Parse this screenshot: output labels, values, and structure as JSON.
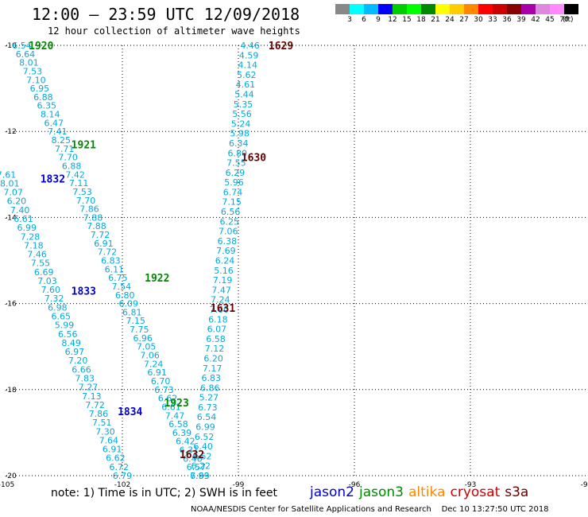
{
  "title": "12:00 – 23:59 UTC 12/09/2018",
  "subtitle": "12 hour collection of altimeter wave heights",
  "note": "note: 1) Time is in UTC; 2) SWH is in feet",
  "credit": "NOAA/NESDIS Center for Satellite Applications and Research    Dec 10 13:27:50 UTC 2018",
  "colors": {
    "jason2": "#0000cc",
    "jason3": "#008800",
    "altika": "#ff8800",
    "cryosat": "#cc0000",
    "s3a": "#660000",
    "value": "#00aadd"
  },
  "satellites": [
    {
      "name": "jason2",
      "color": "#0000cc"
    },
    {
      "name": "jason3",
      "color": "#008800"
    },
    {
      "name": "altika",
      "color": "#ff8800"
    },
    {
      "name": "cryosat",
      "color": "#cc0000"
    },
    {
      "name": "s3a",
      "color": "#660000"
    }
  ],
  "colorbar": {
    "colors": [
      "#888888",
      "#00ffff",
      "#00bbff",
      "#0000ff",
      "#00cc00",
      "#00ff00",
      "#008800",
      "#ffff00",
      "#ffcc00",
      "#ff8800",
      "#ff0000",
      "#cc0000",
      "#880000",
      "#aa00aa",
      "#dd88dd",
      "#ff88ff",
      "#000000"
    ],
    "labels": [
      "3",
      "6",
      "9",
      "12",
      "15",
      "18",
      "21",
      "24",
      "27",
      "30",
      "33",
      "36",
      "39",
      "42",
      "45",
      "70"
    ],
    "unit": "(ft)"
  },
  "chart_data": {
    "type": "scatter",
    "x_ticks": [
      -105,
      -102,
      -99,
      -96,
      -93,
      -90
    ],
    "y_ticks": [
      -10,
      -12,
      -14,
      -16,
      -18,
      -20
    ],
    "xlim": [
      -105,
      -90
    ],
    "ylim": [
      -20,
      -10
    ],
    "grid": true,
    "time_labels": [
      {
        "text": "1920",
        "sat": "jason3",
        "lon": -104.1,
        "lat": -10.0
      },
      {
        "text": "1921",
        "sat": "jason3",
        "lon": -103.0,
        "lat": -12.3
      },
      {
        "text": "1922",
        "sat": "jason3",
        "lon": -101.1,
        "lat": -15.4
      },
      {
        "text": "1923",
        "sat": "jason3",
        "lon": -100.6,
        "lat": -18.3
      },
      {
        "text": "1832",
        "sat": "jason2",
        "lon": -103.8,
        "lat": -13.1
      },
      {
        "text": "1833",
        "sat": "jason2",
        "lon": -103.0,
        "lat": -15.7
      },
      {
        "text": "1834",
        "sat": "jason2",
        "lon": -101.8,
        "lat": -18.5
      },
      {
        "text": "1629",
        "sat": "s3a",
        "lon": -97.9,
        "lat": -10.0
      },
      {
        "text": "1630",
        "sat": "s3a",
        "lon": -98.6,
        "lat": -12.6
      },
      {
        "text": "1631",
        "sat": "s3a",
        "lon": -99.4,
        "lat": -16.1
      },
      {
        "text": "1632",
        "sat": "s3a",
        "lon": -100.2,
        "lat": -19.5
      }
    ],
    "tracks": [
      {
        "name": "jason3 1920-1923",
        "lon_start": -104.6,
        "lat_start": -10.0,
        "lon_end": -100.0,
        "lat_end": -20.0,
        "values": [
          "6.54",
          "6.64",
          "8.01",
          "7.53",
          "7.10",
          "6.95",
          "6.88",
          "6.35",
          "8.14",
          "6.47",
          "7.41",
          "8.25",
          "7.71",
          "7.70",
          "6.88",
          "7.42",
          "7.11",
          "7.53",
          "7.70",
          "7.86",
          "7.88",
          "7.88",
          "7.72",
          "6.91",
          "7.72",
          "6.83",
          "6.11",
          "6.75",
          "7.54",
          "6.80",
          "6.09",
          "6.81",
          "7.15",
          "7.75",
          "6.96",
          "7.05",
          "7.06",
          "7.24",
          "6.91",
          "6.70",
          "6.73",
          "6.62",
          "6.61",
          "7.47",
          "6.58",
          "6.39",
          "6.42",
          "6.31",
          "6.46",
          "6.57",
          "7.63"
        ]
      },
      {
        "name": "jason2 1832-1834",
        "lon_start": -105.0,
        "lat_start": -13.0,
        "lon_end": -102.0,
        "lat_end": -20.0,
        "values": [
          "7.61",
          "8.01",
          "7.07",
          "6.20",
          "7.40",
          "6.61",
          "6.99",
          "7.28",
          "7.18",
          "7.46",
          "7.55",
          "6.69",
          "7.03",
          "7.60",
          "7.32",
          "6.98",
          "6.65",
          "5.99",
          "6.56",
          "8.49",
          "6.97",
          "7.20",
          "6.66",
          "7.83",
          "7.27",
          "7.13",
          "7.72",
          "7.86",
          "7.51",
          "7.30",
          "7.64",
          "6.91",
          "6.62",
          "6.72",
          "6.79"
        ]
      },
      {
        "name": "s3a 1629-1632",
        "lon_start": -98.7,
        "lat_start": -10.0,
        "lon_end": -100.0,
        "lat_end": -20.0,
        "values": [
          "4.46",
          "4.59",
          "4.14",
          "5.62",
          "4.61",
          "5.44",
          "5.35",
          "5.56",
          "5.24",
          "5.98",
          "6.34",
          "6.80",
          "7.55",
          "6.29",
          "5.96",
          "6.74",
          "7.15",
          "6.56",
          "6.25",
          "7.06",
          "6.38",
          "7.69",
          "6.24",
          "5.16",
          "7.19",
          "7.47",
          "7.24",
          "7.60",
          "6.18",
          "6.07",
          "6.58",
          "7.12",
          "6.20",
          "7.17",
          "6.83",
          "6.86",
          "5.27",
          "6.73",
          "6.54",
          "6.99",
          "6.52",
          "6.40",
          "6.52",
          "6.22",
          "6.99"
        ]
      }
    ]
  }
}
